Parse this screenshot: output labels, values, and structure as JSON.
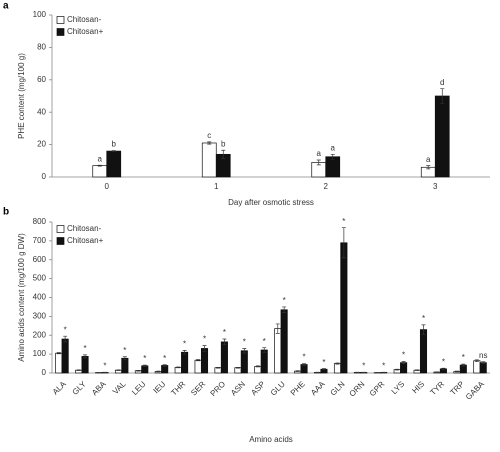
{
  "chart_data": [
    {
      "type": "bar",
      "panel_label": "a",
      "ylabel": "PHE content (mg/100 g)",
      "xlabel": "Day after osmotic stress",
      "categories": [
        "0",
        "1",
        "2",
        "3"
      ],
      "series": [
        {
          "name": "Chitosan-",
          "color": "#ffffff",
          "values": [
            7,
            21,
            9,
            6
          ],
          "errors": [
            0.3,
            0.7,
            1.5,
            1
          ],
          "letters": [
            "a",
            "c",
            "a",
            "a"
          ]
        },
        {
          "name": "Chitosan+",
          "color": "#111111",
          "values": [
            16,
            14,
            12.5,
            50
          ],
          "errors": [
            0.3,
            2.5,
            1.5,
            4.5
          ],
          "letters": [
            "b",
            "b",
            "a",
            "d"
          ]
        }
      ],
      "ylim": [
        0,
        100
      ],
      "yticks": [
        0,
        20,
        40,
        60,
        80,
        100
      ],
      "xtick_rotation": 0
    },
    {
      "type": "bar",
      "panel_label": "b",
      "ylabel": "Amino acids content (mg/100 g DW)",
      "xlabel": "Amino acids",
      "categories": [
        "ALA",
        "GLY",
        "ABA",
        "VAL",
        "LEU",
        "IEU",
        "THR",
        "SER",
        "PRO",
        "ASN",
        "ASP",
        "GLU",
        "PHE",
        "AAA",
        "GLN",
        "ORN",
        "GPR",
        "LYS",
        "HIS",
        "TYR",
        "TRP",
        "GABA"
      ],
      "series": [
        {
          "name": "Chitosan-",
          "color": "#ffffff",
          "values": [
            105,
            15,
            2,
            15,
            12,
            8,
            30,
            68,
            28,
            28,
            35,
            235,
            10,
            3,
            50,
            3,
            2,
            18,
            15,
            5,
            8,
            65
          ],
          "errors": [
            3,
            2,
            1,
            2,
            2,
            2,
            2,
            3,
            2,
            2,
            3,
            25,
            2,
            1,
            3,
            1,
            1,
            2,
            2,
            1,
            2,
            5
          ]
        },
        {
          "name": "Chitosan+",
          "color": "#111111",
          "values": [
            180,
            88,
            3,
            78,
            38,
            40,
            110,
            130,
            165,
            118,
            122,
            335,
            45,
            20,
            690,
            3,
            3,
            55,
            230,
            22,
            42,
            55
          ],
          "errors": [
            15,
            8,
            1,
            8,
            4,
            4,
            10,
            15,
            15,
            12,
            12,
            15,
            5,
            3,
            80,
            1,
            1,
            6,
            25,
            3,
            5,
            5
          ],
          "letters": [
            "*",
            "*",
            "*",
            "*",
            "*",
            "*",
            "*",
            "*",
            "*",
            "*",
            "*",
            "*",
            "*",
            "*",
            "*",
            "*",
            "*",
            "*",
            "*",
            "*",
            "*",
            "ns"
          ]
        }
      ],
      "ylim": [
        0,
        800
      ],
      "yticks": [
        0,
        100,
        200,
        300,
        400,
        500,
        600,
        700,
        800
      ],
      "xtick_rotation": -45
    }
  ]
}
